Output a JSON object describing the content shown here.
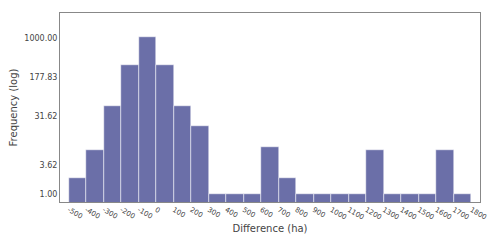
{
  "chart_data": {
    "type": "histogram",
    "bins": [
      -500,
      -400,
      -300,
      -200,
      -100,
      0,
      100,
      200,
      300,
      400,
      500,
      600,
      700,
      800,
      900,
      1000,
      1100,
      1200,
      1300,
      1400,
      1500,
      1600,
      1700,
      1800
    ],
    "values": [
      2,
      7,
      50,
      300,
      1050,
      300,
      50,
      20,
      1,
      1,
      1,
      8,
      2,
      1,
      1,
      1,
      1,
      7,
      1,
      1,
      1,
      7,
      1
    ],
    "color": "#6b6fa8",
    "xlabel": "Difference (ha)",
    "ylabel": "Frequency (log)",
    "xlim": [
      -550,
      1850
    ],
    "ylim": [
      0.7,
      3000
    ],
    "log": "y",
    "xticks": [
      -500,
      -400,
      -300,
      -200,
      -100,
      0,
      100,
      200,
      300,
      400,
      500,
      600,
      700,
      800,
      900,
      1000,
      1100,
      1200,
      1300,
      1400,
      1500,
      1600,
      1700,
      1800
    ],
    "yticks": [
      {
        "value": 1.0,
        "label": "1.00"
      },
      {
        "value": 3.62,
        "label": "3.62"
      },
      {
        "value": 31.62,
        "label": "31.62"
      },
      {
        "value": 177.83,
        "label": "177.83"
      },
      {
        "value": 1000.0,
        "label": "1000.00"
      }
    ],
    "grid": false
  }
}
